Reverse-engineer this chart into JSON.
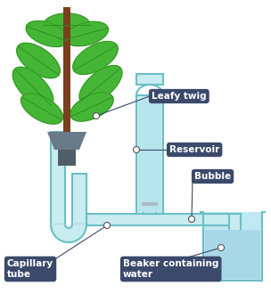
{
  "bg_color": "#ffffff",
  "tube_stroke": "#6abfc6",
  "tube_fill": "#c8ecf0",
  "tube_fill2": "#a8dde4",
  "water_fill": "#b8e4ec",
  "beaker_fill": "#c0e8f0",
  "label_bg": "#3b4a6b",
  "label_text": "#ffffff",
  "label_fontsize": 7.5,
  "line_color": "#3b4a6b",
  "stem_color": "#7b3f1e",
  "leaf_color": "#45b535",
  "leaf_edge": "#2d8a20",
  "leaf_vein": "#2d8a20",
  "pot_color": "#6a7a88",
  "pot_dark": "#505e6a",
  "stopcock_color": "#aabbc8",
  "dot_color": "#ffffff",
  "dot_edge": "#444444",
  "figsize": [
    3.04,
    3.39
  ],
  "dpi": 100,
  "labels": {
    "leafy_twig": "Leafy twig",
    "reservoir": "Reservoir",
    "bubble": "Bubble",
    "capillary": "Capillary\ntube",
    "beaker": "Beaker containing\nwater"
  }
}
